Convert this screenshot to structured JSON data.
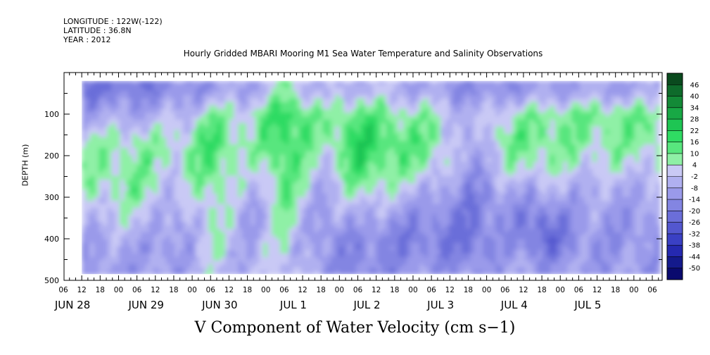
{
  "header": {
    "longitude": "LONGITUDE : 122W(-122)",
    "latitude": "LATITUDE : 36.8N",
    "year": "YEAR : 2012"
  },
  "chart_data": {
    "type": "heatmap",
    "title": "Hourly Gridded MBARI Mooring M1 Sea Water Temperature and Salinity Observations",
    "caption": "V Component of Water Velocity (cm s−1)",
    "ylabel": "DEPTH (m)",
    "y_axis": {
      "min": 0,
      "max": 500,
      "inverted": true,
      "ticks": [
        100,
        200,
        300,
        400,
        500
      ]
    },
    "x_axis": {
      "start_label_hour": 6,
      "hour_ticks": [
        "06",
        "12",
        "18",
        "00",
        "06",
        "12",
        "18",
        "00",
        "06",
        "12",
        "18",
        "00",
        "06",
        "12",
        "18",
        "00",
        "06",
        "12",
        "18",
        "00",
        "06",
        "12",
        "18",
        "00",
        "06",
        "12",
        "18",
        "00",
        "06",
        "12",
        "18",
        "00",
        "06"
      ],
      "day_labels": [
        "JUN 28",
        "JUN 29",
        "JUN 30",
        "JUL  1",
        "JUL  2",
        "JUL  3",
        "JUL  4",
        "JUL  5"
      ]
    },
    "data_depth_range_m": [
      20,
      485
    ],
    "colorbar": {
      "labels": [
        "46",
        "40",
        "34",
        "28",
        "22",
        "16",
        "10",
        "4",
        "-2",
        "-8",
        "-14",
        "-20",
        "-26",
        "-32",
        "-38",
        "-44",
        "-50"
      ],
      "colors": [
        "#0a4a1e",
        "#0e6b2b",
        "#138a37",
        "#18a845",
        "#1ec553",
        "#2fdb63",
        "#58e67e",
        "#8ff0a6",
        "#c9c9f5",
        "#b0b0f0",
        "#9a9aea",
        "#8385e2",
        "#6b6ed9",
        "#5357cf",
        "#3a40c4",
        "#2529b0",
        "#141a8c",
        "#0a0a6e"
      ]
    },
    "depth_profile_samples": {
      "note_type": "v-velocity",
      "columns": [
        {
          "time": "JUN 28 12",
          "v": [
            -20,
            -8,
            4,
            6,
            4,
            -2,
            -8,
            -10
          ]
        },
        {
          "time": "JUN 29 06",
          "v": [
            -18,
            -6,
            6,
            10,
            8,
            2,
            -6,
            -10
          ]
        },
        {
          "time": "JUN 29 18",
          "v": [
            -14,
            -4,
            4,
            2,
            -4,
            -10,
            -12,
            -10
          ]
        },
        {
          "time": "JUN 30 06",
          "v": [
            -10,
            8,
            16,
            14,
            10,
            6,
            4,
            0
          ]
        },
        {
          "time": "JUN 30 18",
          "v": [
            -8,
            4,
            4,
            0,
            -6,
            -10,
            -8,
            -6
          ]
        },
        {
          "time": "JUL 1 06",
          "v": [
            6,
            22,
            20,
            16,
            12,
            8,
            4,
            2
          ]
        },
        {
          "time": "JUL 1 18",
          "v": [
            -6,
            6,
            4,
            -2,
            -8,
            -12,
            -14,
            -12
          ]
        },
        {
          "time": "JUL 2 06",
          "v": [
            -2,
            14,
            22,
            18,
            8,
            -4,
            -14,
            -16
          ]
        },
        {
          "time": "JUL 2 18",
          "v": [
            -4,
            8,
            14,
            10,
            0,
            -12,
            -18,
            -14
          ]
        },
        {
          "time": "JUL 3 06",
          "v": [
            -8,
            6,
            10,
            6,
            -6,
            -14,
            -18,
            -12
          ]
        },
        {
          "time": "JUL 3 18",
          "v": [
            -14,
            -6,
            -10,
            -12,
            -16,
            -20,
            -22,
            -14
          ]
        },
        {
          "time": "JUL 4 06",
          "v": [
            -12,
            6,
            10,
            4,
            -8,
            -12,
            -10,
            -8
          ]
        },
        {
          "time": "JUL 4 18",
          "v": [
            -10,
            8,
            10,
            6,
            -6,
            -20,
            -26,
            -12
          ]
        },
        {
          "time": "JUL 5 06",
          "v": [
            -8,
            10,
            8,
            2,
            -6,
            -10,
            -12,
            -10
          ]
        }
      ],
      "depths_m": [
        40,
        100,
        160,
        220,
        280,
        340,
        400,
        460
      ]
    }
  }
}
